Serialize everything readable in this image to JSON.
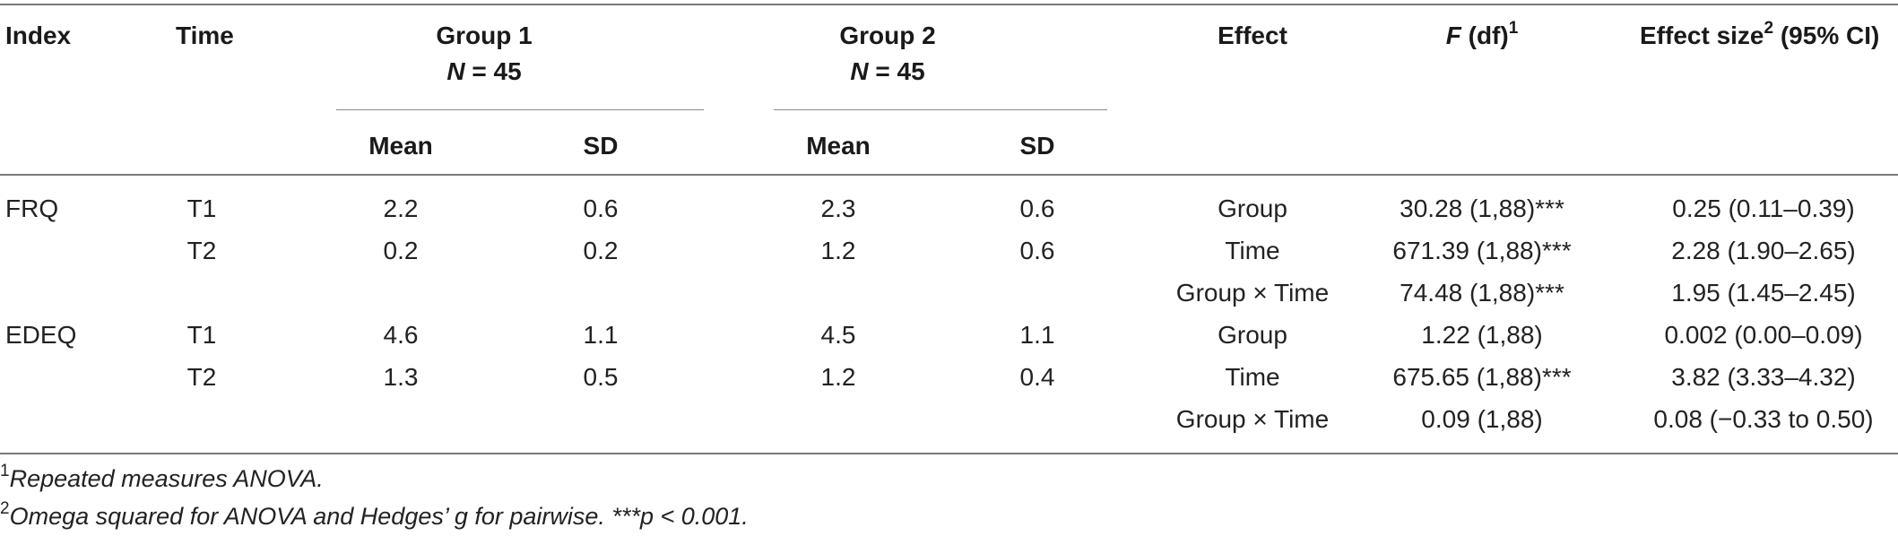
{
  "header": {
    "index": "Index",
    "time": "Time",
    "group1_name": "Group 1",
    "group1_n_label": "N",
    "group1_n_value": " = 45",
    "group2_name": "Group 2",
    "group2_n_label": "N",
    "group2_n_value": " = 45",
    "effect": "Effect",
    "f_label": "F",
    "f_rest": " (df)",
    "f_sup": "1",
    "es_label": "Effect size",
    "es_sup": "2",
    "es_rest": " (95% CI)",
    "mean": "Mean",
    "sd": "SD"
  },
  "rows": [
    {
      "index": "FRQ",
      "time": "T1",
      "g1_mean": "2.2",
      "g1_sd": "0.6",
      "g2_mean": "2.3",
      "g2_sd": "0.6",
      "effect": "Group",
      "f": "30.28 (1,88)***",
      "es": "0.25 (0.11–0.39)"
    },
    {
      "index": "",
      "time": "T2",
      "g1_mean": "0.2",
      "g1_sd": "0.2",
      "g2_mean": "1.2",
      "g2_sd": "0.6",
      "effect": "Time",
      "f": "671.39 (1,88)***",
      "es": "2.28 (1.90–2.65)"
    },
    {
      "index": "",
      "time": "",
      "g1_mean": "",
      "g1_sd": "",
      "g2_mean": "",
      "g2_sd": "",
      "effect": "Group × Time",
      "f": "74.48 (1,88)***",
      "es": "1.95 (1.45–2.45)"
    },
    {
      "index": "EDEQ",
      "time": "T1",
      "g1_mean": "4.6",
      "g1_sd": "1.1",
      "g2_mean": "4.5",
      "g2_sd": "1.1",
      "effect": "Group",
      "f": "1.22 (1,88)",
      "es": "0.002 (0.00–0.09)"
    },
    {
      "index": "",
      "time": "T2",
      "g1_mean": "1.3",
      "g1_sd": "0.5",
      "g2_mean": "1.2",
      "g2_sd": "0.4",
      "effect": "Time",
      "f": "675.65 (1,88)***",
      "es": "3.82 (3.33–4.32)"
    },
    {
      "index": "",
      "time": "",
      "g1_mean": "",
      "g1_sd": "",
      "g2_mean": "",
      "g2_sd": "",
      "effect": "Group × Time",
      "f": "0.09 (1,88)",
      "es": "0.08 (−0.33 to 0.50)"
    }
  ],
  "footnotes": [
    {
      "mark": "1",
      "text": "Repeated measures ANOVA."
    },
    {
      "mark": "2",
      "text": "Omega squared for ANOVA and Hedges’ g for pairwise. ***p < 0.001."
    }
  ]
}
